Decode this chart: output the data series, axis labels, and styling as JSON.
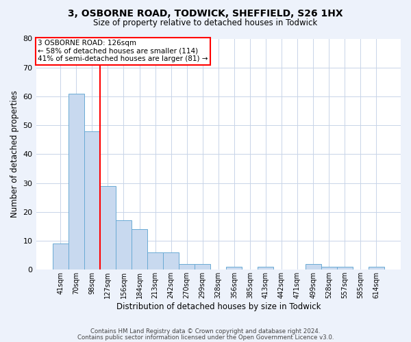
{
  "title_line1": "3, OSBORNE ROAD, TODWICK, SHEFFIELD, S26 1HX",
  "title_line2": "Size of property relative to detached houses in Todwick",
  "xlabel": "Distribution of detached houses by size in Todwick",
  "ylabel": "Number of detached properties",
  "categories": [
    "41sqm",
    "70sqm",
    "98sqm",
    "127sqm",
    "156sqm",
    "184sqm",
    "213sqm",
    "242sqm",
    "270sqm",
    "299sqm",
    "328sqm",
    "356sqm",
    "385sqm",
    "413sqm",
    "442sqm",
    "471sqm",
    "499sqm",
    "528sqm",
    "557sqm",
    "585sqm",
    "614sqm"
  ],
  "values": [
    9,
    61,
    48,
    29,
    17,
    14,
    6,
    6,
    2,
    2,
    0,
    1,
    0,
    1,
    0,
    0,
    2,
    1,
    1,
    0,
    1
  ],
  "bar_color": "#c8d9ef",
  "bar_edge_color": "#6aaad4",
  "grid_color": "#c8d4e8",
  "red_line_x": 2.5,
  "ylim": [
    0,
    80
  ],
  "yticks": [
    0,
    10,
    20,
    30,
    40,
    50,
    60,
    70,
    80
  ],
  "annotation_line1": "3 OSBORNE ROAD: 126sqm",
  "annotation_line2": "← 58% of detached houses are smaller (114)",
  "annotation_line3": "41% of semi-detached houses are larger (81) →",
  "footer_line1": "Contains HM Land Registry data © Crown copyright and database right 2024.",
  "footer_line2": "Contains public sector information licensed under the Open Government Licence v3.0.",
  "bg_color": "#edf2fb",
  "plot_bg_color": "#ffffff"
}
